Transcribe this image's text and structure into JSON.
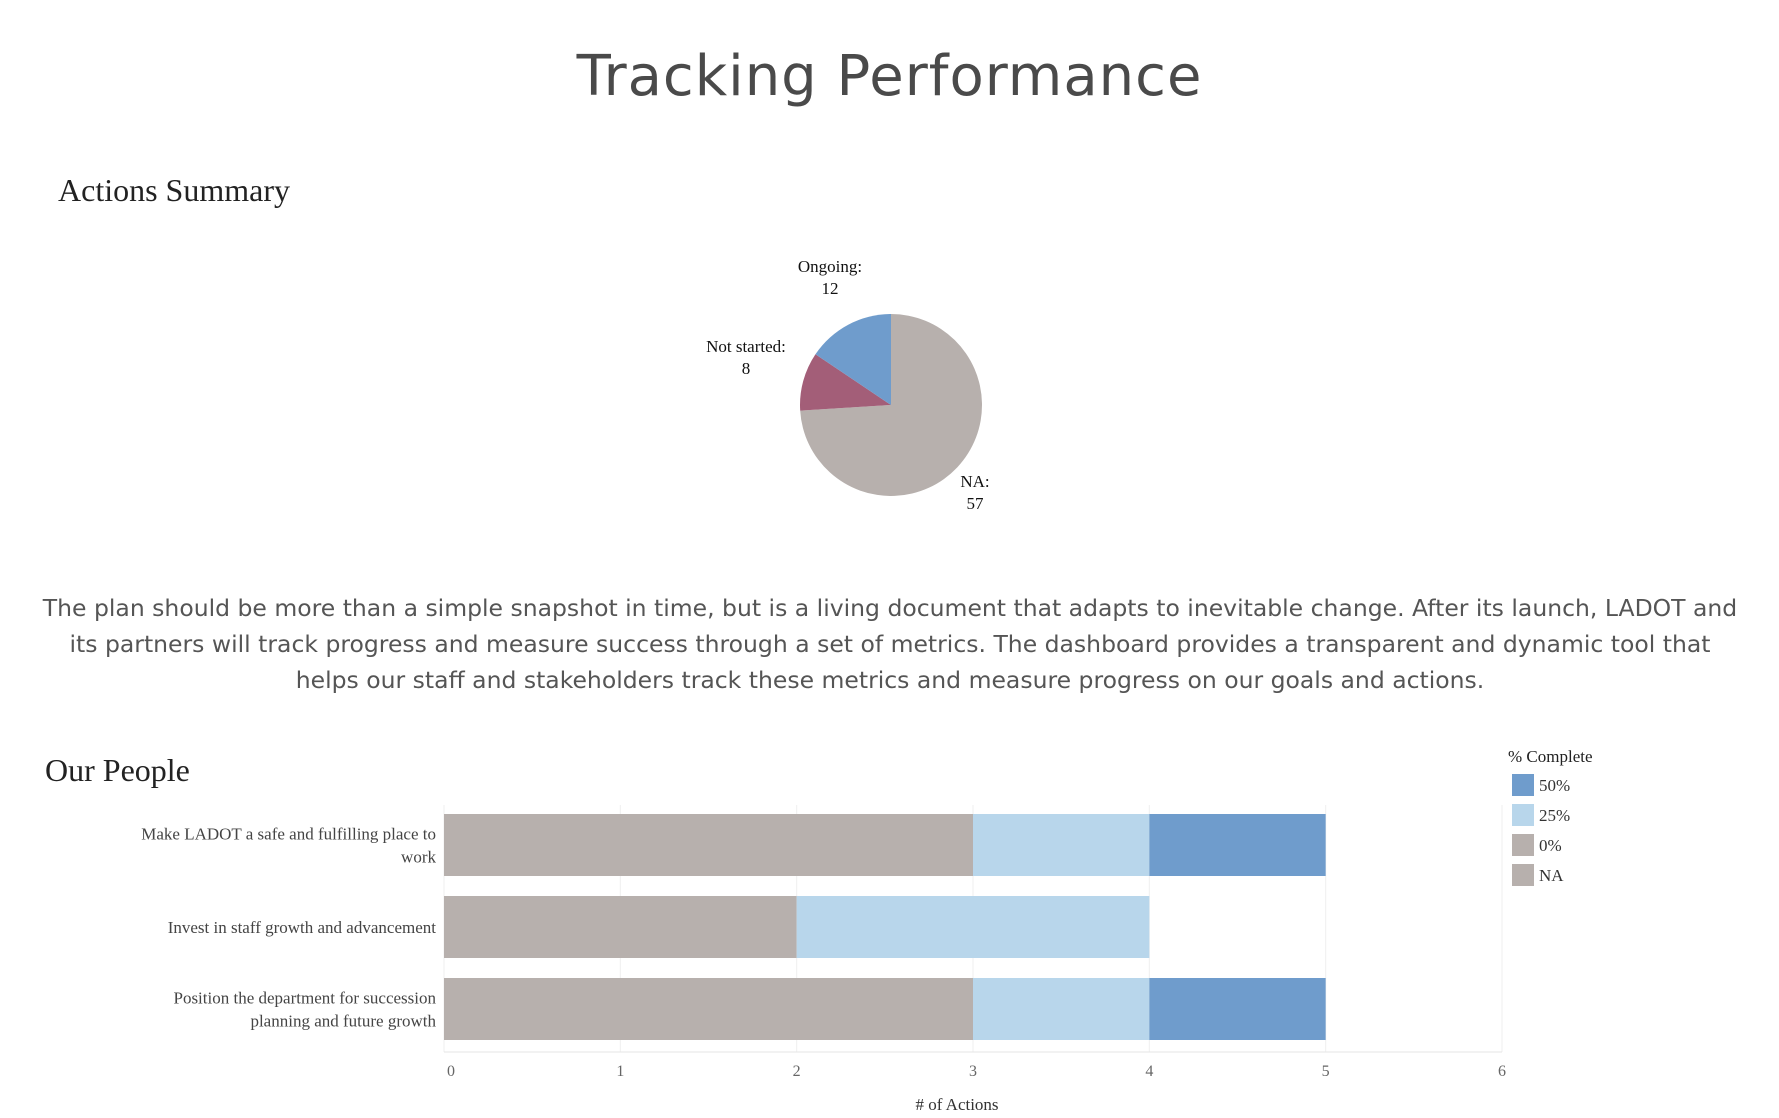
{
  "page": {
    "title": "Tracking Performance",
    "description": "The plan should be more than a simple snapshot in time, but is a living document that adapts to inevitable change. After its launch, LADOT and its partners will track progress and measure success through a set of metrics. The dashboard provides a transparent and dynamic tool that helps our staff and stakeholders track these metrics and measure progress on our goals and actions."
  },
  "chart_data": [
    {
      "type": "pie",
      "title": "Actions Summary",
      "slices": [
        {
          "label": "NA",
          "value": 57,
          "color": "#b7b0ad",
          "label_line1": "NA:",
          "label_line2": "57"
        },
        {
          "label": "Not started",
          "value": 8,
          "color": "#a35e78",
          "label_line1": "Not started:",
          "label_line2": "8"
        },
        {
          "label": "Ongoing",
          "value": 12,
          "color": "#6f9ccc",
          "label_line1": "Ongoing:",
          "label_line2": "12"
        }
      ]
    },
    {
      "type": "bar",
      "orientation": "horizontal",
      "stacked": true,
      "title": "Our People",
      "categories": [
        [
          "Make LADOT a safe and fulfilling place to",
          "work"
        ],
        [
          "Invest in staff growth and advancement"
        ],
        [
          "Position the department for succession",
          "planning and future growth"
        ]
      ],
      "series": [
        {
          "name": "0%",
          "values": [
            3,
            2,
            3
          ],
          "color": "#b7b0ad"
        },
        {
          "name": "25%",
          "values": [
            1,
            2,
            1
          ],
          "color": "#b8d6eb"
        },
        {
          "name": "50%",
          "values": [
            1,
            0,
            1
          ],
          "color": "#6f9ccc"
        }
      ],
      "legend": {
        "title": "% Complete",
        "position": "top-right",
        "entries": [
          {
            "name": "50%",
            "color": "#6f9ccc"
          },
          {
            "name": "25%",
            "color": "#b8d6eb"
          },
          {
            "name": "0%",
            "color": "#b7b0ad"
          },
          {
            "name": "NA",
            "color": "#b7b0ad"
          }
        ]
      },
      "xlabel": "# of Actions",
      "xlim": [
        0,
        6
      ],
      "xticks": [
        0,
        1,
        2,
        3,
        4,
        5,
        6
      ],
      "grid": true
    }
  ]
}
